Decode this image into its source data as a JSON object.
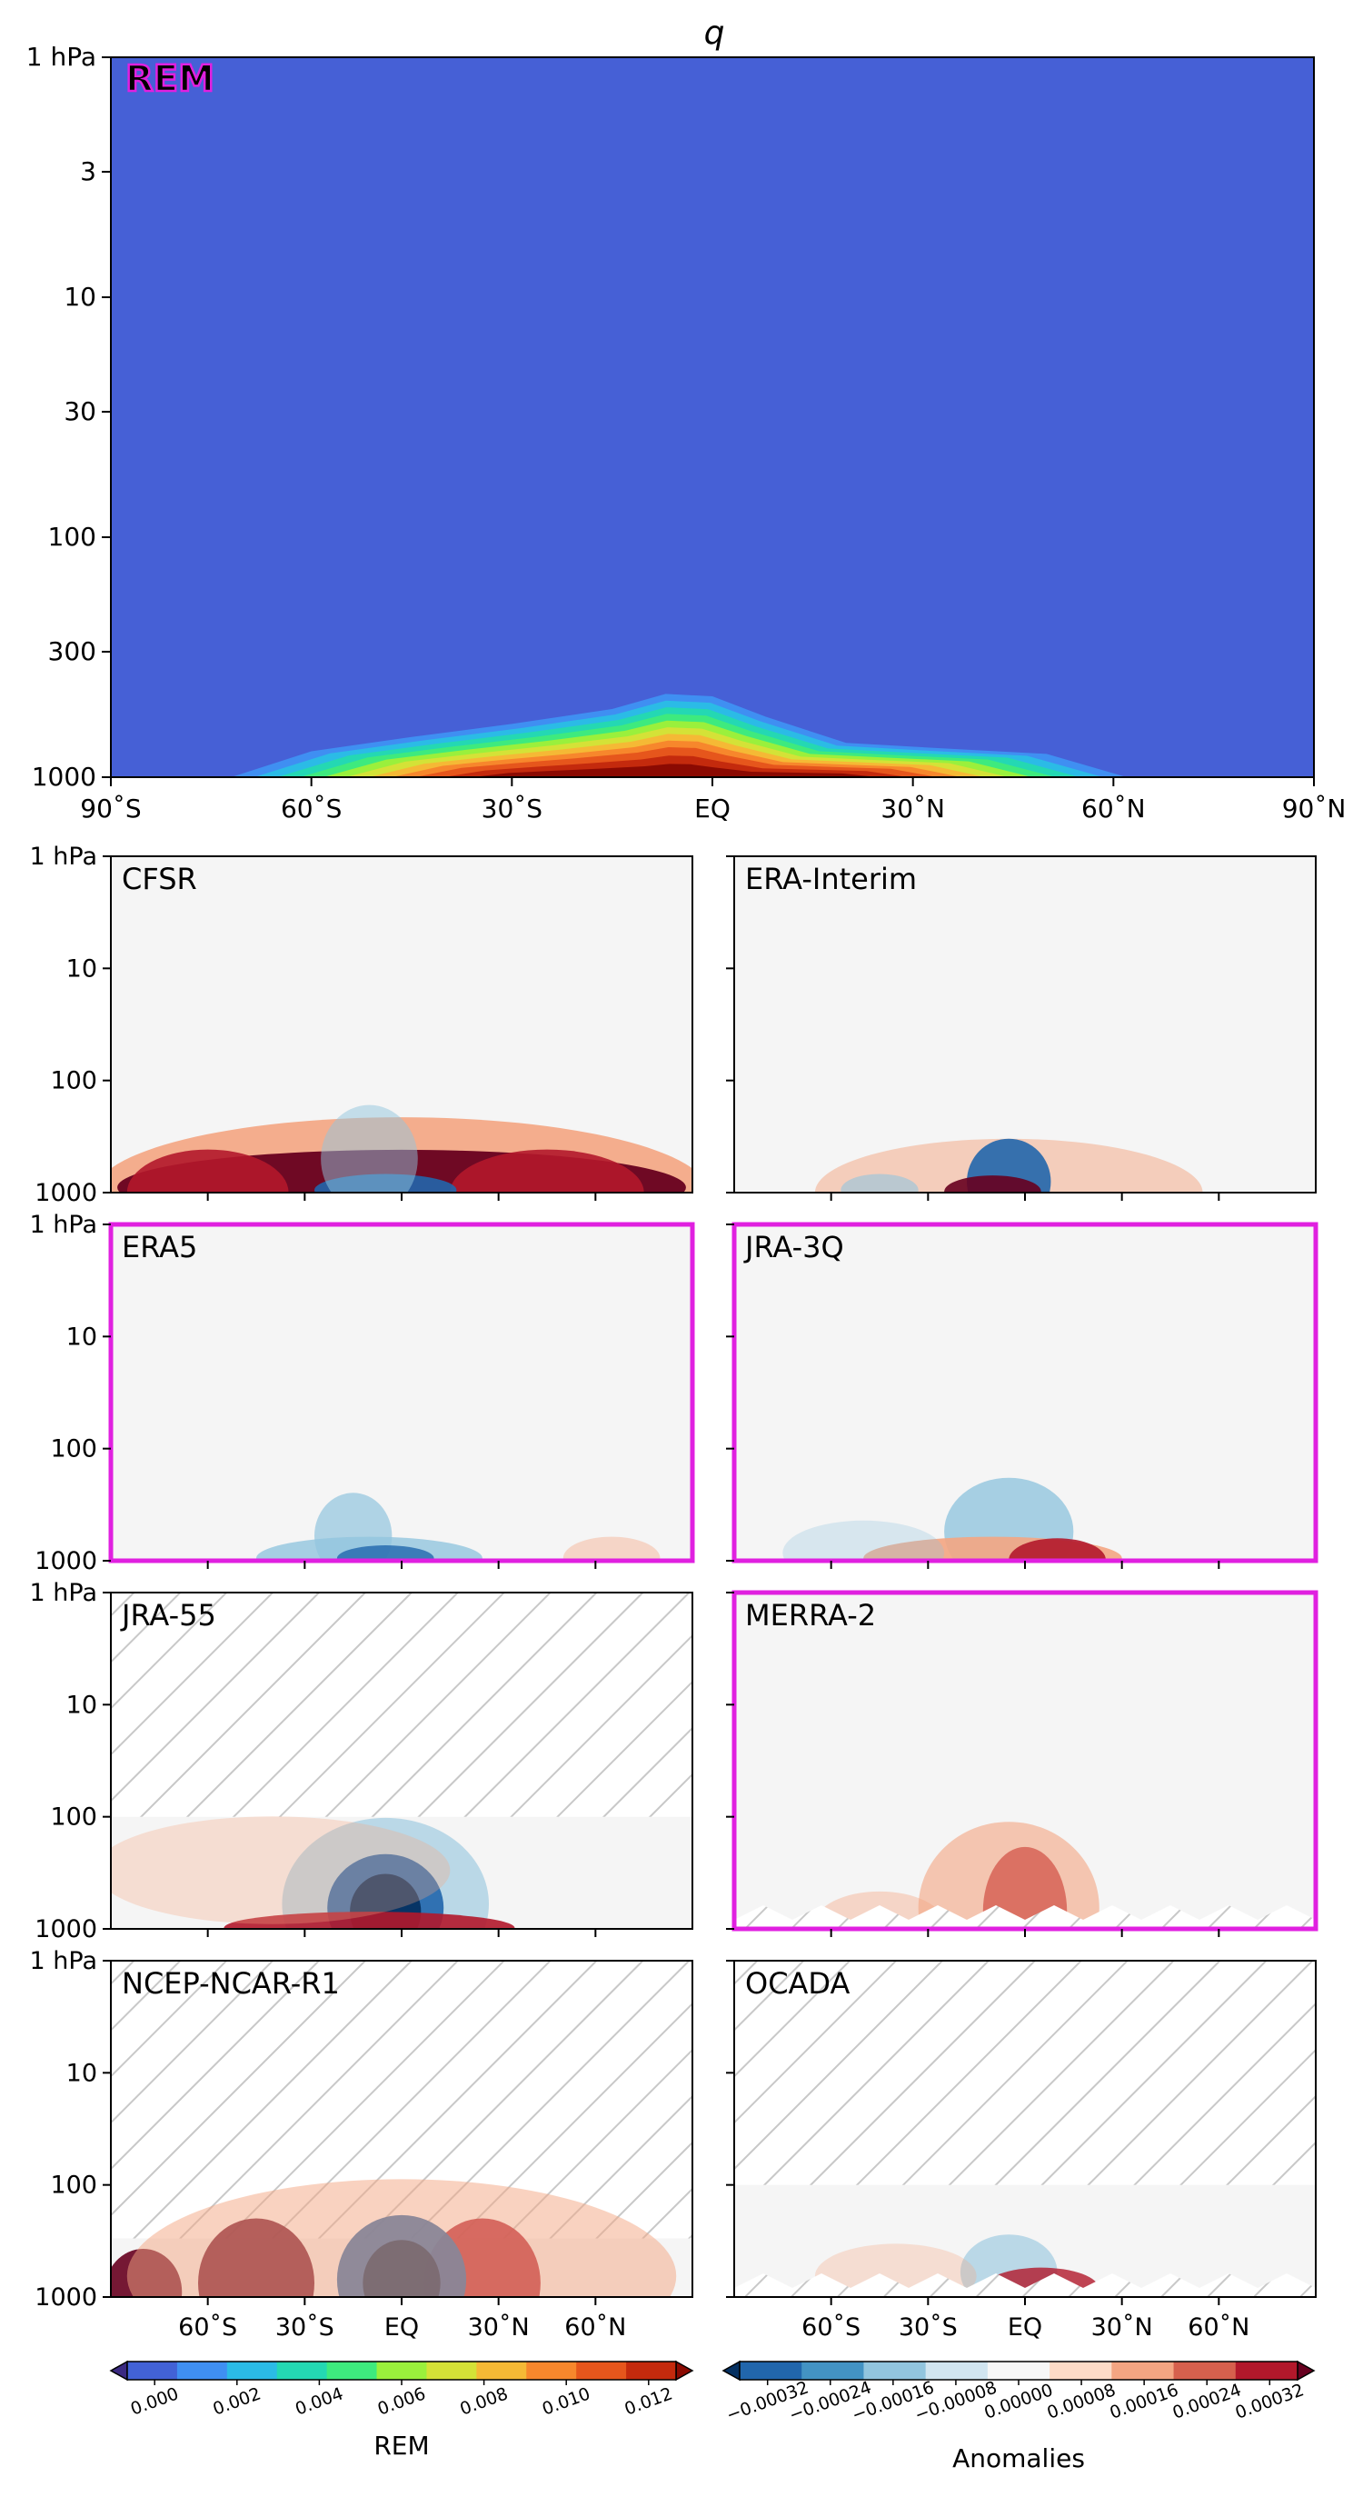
{
  "title": "q",
  "chart_data": [
    {
      "type": "contour",
      "panel": "REM",
      "label": "REM",
      "highlighted": true,
      "y_axis": {
        "scale": "log",
        "range": [
          1000,
          1
        ],
        "ticks": [
          "1 hPa",
          "3",
          "10",
          "30",
          "100",
          "300",
          "1000"
        ]
      },
      "x_axis": {
        "range": [
          -90,
          90
        ],
        "ticks": [
          "90˚S",
          "60˚S",
          "30˚S",
          "EQ",
          "30˚N",
          "60˚N",
          "90˚N"
        ]
      },
      "surface_profile": {
        "lat": [
          -72,
          -60,
          -45,
          -30,
          -15,
          -7,
          0,
          8,
          20,
          35,
          50,
          62
        ],
        "top_hPa": [
          1000,
          780,
          680,
          600,
          520,
          450,
          460,
          560,
          720,
          760,
          800,
          1000
        ],
        "peak_q": [
          0.0015,
          0.003,
          0.005,
          0.008,
          0.012,
          0.013,
          0.0125,
          0.011,
          0.006,
          0.004,
          0.002,
          0.001
        ]
      }
    },
    {
      "type": "contour",
      "panel": "CFSR",
      "label": "CFSR",
      "highlighted": false,
      "hatched": "none",
      "pattern": "strong positive anomalies near surface across all latitudes, negative thin layer near equator"
    },
    {
      "type": "contour",
      "panel": "ERA-Interim",
      "label": "ERA-Interim",
      "highlighted": false,
      "hatched": "none",
      "pattern": "weak positive near surface, negative anomaly near equator mid-troposphere"
    },
    {
      "type": "contour",
      "panel": "ERA5",
      "label": "ERA5",
      "highlighted": true,
      "hatched": "none",
      "pattern": "weak negative anomalies near equator lower troposphere"
    },
    {
      "type": "contour",
      "panel": "JRA-3Q",
      "label": "JRA-3Q",
      "highlighted": true,
      "hatched": "none",
      "pattern": "negative above, positive near surface in tropics"
    },
    {
      "type": "contour",
      "panel": "JRA-55",
      "label": "JRA-55",
      "highlighted": false,
      "hatched": "above 100 hPa",
      "pattern": "strong negative anomaly in tropics lower troposphere, positive near surface"
    },
    {
      "type": "contour",
      "panel": "MERRA-2",
      "label": "MERRA-2",
      "highlighted": true,
      "hatched": "near surface",
      "pattern": "positive anomaly near equator lower troposphere"
    },
    {
      "type": "contour",
      "panel": "NCEP-NCAR-R1",
      "label": "NCEP-NCAR-R1",
      "highlighted": false,
      "hatched": "above 300 hPa",
      "pattern": "strong positive near surface, strong negative over tropics"
    },
    {
      "type": "contour",
      "panel": "OCADA",
      "label": "OCADA",
      "highlighted": false,
      "hatched": "above 100 hPa and near surface",
      "pattern": "weak mixed anomalies near tropics"
    }
  ],
  "small_axes": {
    "y_ticks": [
      "1 hPa",
      "10",
      "100",
      "1000"
    ],
    "x_ticks": [
      "60˚S",
      "30˚S",
      "EQ",
      "30˚N",
      "60˚N"
    ]
  },
  "colorbars": {
    "rem": {
      "label": "REM",
      "ticks": [
        "0.000",
        "0.002",
        "0.004",
        "0.006",
        "0.008",
        "0.010",
        "0.012"
      ],
      "colors": [
        "#3b2a82",
        "#4262d6",
        "#3f8ff2",
        "#2bbbe6",
        "#24d8b3",
        "#3eea7e",
        "#9af03c",
        "#d4e237",
        "#f5b935",
        "#f7872c",
        "#e6561c",
        "#c42a0d",
        "#8b0a02"
      ]
    },
    "anomalies": {
      "label": "Anomalies",
      "ticks": [
        "−0.00032",
        "−0.00024",
        "−0.00016",
        "−0.00008",
        "0.00000",
        "0.00008",
        "0.00016",
        "0.00024",
        "0.00032"
      ],
      "colors": [
        "#053061",
        "#2166ac",
        "#4393c3",
        "#92c5de",
        "#d1e5f0",
        "#f7f7f7",
        "#fddbc7",
        "#f4a582",
        "#d6604d",
        "#b2182b",
        "#67001f"
      ]
    }
  },
  "highlight_color": "#e020e0"
}
